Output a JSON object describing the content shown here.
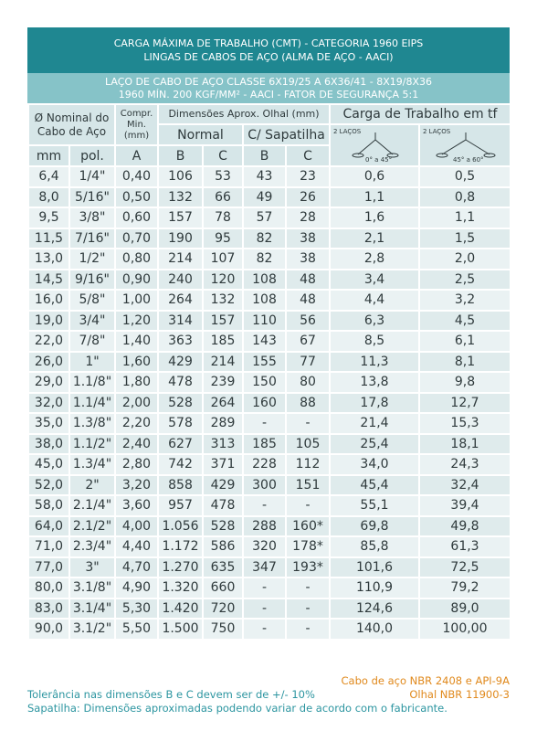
{
  "header": {
    "title_line1": "CARGA MÁXIMA DE TRABALHO (CMT) - CATEGORIA 1960 EIPS",
    "title_line2": "LINGAS DE CABOS DE AÇO (ALMA DE AÇO - AACI)",
    "subtitle_line1": "LAÇO DE CABO DE AÇO CLASSE 6X19/25 A 6X36/41 - 8X19/8X36",
    "subtitle_line2": "1960 MÍN. 200 KGF/MM² - AACI -  FATOR DE SEGURANÇA 5:1"
  },
  "columns": {
    "nominal": "Ø Nominal do Cabo de Aço",
    "compr": "Compr. Min. (mm)",
    "dimensions": "Dimensões Aprox. Olhal (mm)",
    "normal": "Normal",
    "sapatilha": "C/ Sapatilha",
    "load": "Carga de Trabalho em tf",
    "legs_1": "2 LAÇOS",
    "angle_1": "0° a 45°",
    "legs_2": "2 LAÇOS",
    "angle_2": "45° a 60°",
    "units": [
      "mm",
      "pol.",
      "A",
      "B",
      "C",
      "B",
      "C"
    ]
  },
  "table": {
    "rows": [
      [
        "6,4",
        "1/4\"",
        "0,40",
        "106",
        "53",
        "43",
        "23",
        "0,6",
        "0,5"
      ],
      [
        "8,0",
        "5/16\"",
        "0,50",
        "132",
        "66",
        "49",
        "26",
        "1,1",
        "0,8"
      ],
      [
        "9,5",
        "3/8\"",
        "0,60",
        "157",
        "78",
        "57",
        "28",
        "1,6",
        "1,1"
      ],
      [
        "11,5",
        "7/16\"",
        "0,70",
        "190",
        "95",
        "82",
        "38",
        "2,1",
        "1,5"
      ],
      [
        "13,0",
        "1/2\"",
        "0,80",
        "214",
        "107",
        "82",
        "38",
        "2,8",
        "2,0"
      ],
      [
        "14,5",
        "9/16\"",
        "0,90",
        "240",
        "120",
        "108",
        "48",
        "3,4",
        "2,5"
      ],
      [
        "16,0",
        "5/8\"",
        "1,00",
        "264",
        "132",
        "108",
        "48",
        "4,4",
        "3,2"
      ],
      [
        "19,0",
        "3/4\"",
        "1,20",
        "314",
        "157",
        "110",
        "56",
        "6,3",
        "4,5"
      ],
      [
        "22,0",
        "7/8\"",
        "1,40",
        "363",
        "185",
        "143",
        "67",
        "8,5",
        "6,1"
      ],
      [
        "26,0",
        "1\"",
        "1,60",
        "429",
        "214",
        "155",
        "77",
        "11,3",
        "8,1"
      ],
      [
        "29,0",
        "1.1/8\"",
        "1,80",
        "478",
        "239",
        "150",
        "80",
        "13,8",
        "9,8"
      ],
      [
        "32,0",
        "1.1/4\"",
        "2,00",
        "528",
        "264",
        "160",
        "88",
        "17,8",
        "12,7"
      ],
      [
        "35,0",
        "1.3/8\"",
        "2,20",
        "578",
        "289",
        "-",
        "-",
        "21,4",
        "15,3"
      ],
      [
        "38,0",
        "1.1/2\"",
        "2,40",
        "627",
        "313",
        "185",
        "105",
        "25,4",
        "18,1"
      ],
      [
        "45,0",
        "1.3/4\"",
        "2,80",
        "742",
        "371",
        "228",
        "112",
        "34,0",
        "24,3"
      ],
      [
        "52,0",
        "2\"",
        "3,20",
        "858",
        "429",
        "300",
        "151",
        "45,4",
        "32,4"
      ],
      [
        "58,0",
        "2.1/4\"",
        "3,60",
        "957",
        "478",
        "-",
        "-",
        "55,1",
        "39,4"
      ],
      [
        "64,0",
        "2.1/2\"",
        "4,00",
        "1.056",
        "528",
        "288",
        "160*",
        "69,8",
        "49,8"
      ],
      [
        "71,0",
        "2.3/4\"",
        "4,40",
        "1.172",
        "586",
        "320",
        "178*",
        "85,8",
        "61,3"
      ],
      [
        "77,0",
        "3\"",
        "4,70",
        "1.270",
        "635",
        "347",
        "193*",
        "101,6",
        "72,5"
      ],
      [
        "80,0",
        "3.1/8\"",
        "4,90",
        "1.320",
        "660",
        "-",
        "-",
        "110,9",
        "79,2"
      ],
      [
        "83,0",
        "3.1/4\"",
        "5,30",
        "1.420",
        "720",
        "-",
        "-",
        "124,6",
        "89,0"
      ],
      [
        "90,0",
        "3.1/2\"",
        "5,50",
        "1.500",
        "750",
        "-",
        "-",
        "140,0",
        "100,00"
      ]
    ]
  },
  "footer": {
    "standard_1": "Cabo de aço NBR 2408 e API-9A",
    "standard_2": "Olhal NBR 11900-3",
    "note_1": "Tolerância nas dimensões B e C devem ser de +/- 10%",
    "note_2": "Sapatilha: Dimensões aproximadas podendo variar de acordo com o fabricante."
  }
}
